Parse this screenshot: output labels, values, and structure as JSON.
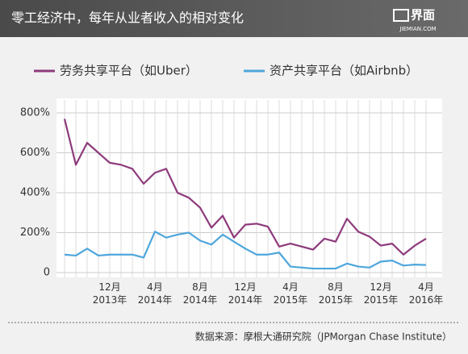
{
  "header": {
    "title": "零工经济中，每年从业者收入的相对变化",
    "logo": "界面",
    "logo_sub": "JIEMIAN.COM"
  },
  "chart_data": {
    "type": "line",
    "categories": [
      null,
      null,
      null,
      null,
      "12月\n2013年",
      null,
      null,
      null,
      "4月\n2014年",
      null,
      null,
      null,
      "8月\n2014年",
      null,
      null,
      null,
      "12月\n2014年",
      null,
      null,
      null,
      "4月\n2015年",
      null,
      null,
      null,
      "8月\n2015年",
      null,
      null,
      null,
      "12月\n2015年",
      null,
      null,
      null,
      "4月\n2016年"
    ],
    "series": [
      {
        "name": "劳务共享平台（如Uber）",
        "color": "#8e3b7c",
        "values": [
          770,
          540,
          650,
          600,
          550,
          540,
          520,
          445,
          500,
          520,
          400,
          375,
          325,
          225,
          285,
          175,
          240,
          245,
          230,
          130,
          145,
          130,
          115,
          170,
          155,
          270,
          205,
          180,
          135,
          145,
          90,
          135,
          170
        ]
      },
      {
        "name": "资产共享平台（如Airbnb）",
        "color": "#4ea6dc",
        "values": [
          90,
          85,
          120,
          85,
          90,
          90,
          90,
          75,
          205,
          175,
          190,
          200,
          160,
          140,
          190,
          155,
          120,
          90,
          90,
          100,
          30,
          25,
          20,
          20,
          20,
          45,
          30,
          25,
          55,
          60,
          35,
          40,
          38
        ]
      }
    ],
    "ylim": [
      0,
      800
    ],
    "yticks": [
      0,
      {
        "value": 200,
        "label": "200%"
      },
      {
        "value": 400,
        "label": "400%"
      },
      {
        "value": 600,
        "label": "600%"
      },
      {
        "value": 800,
        "label": "800%"
      }
    ],
    "grid": true
  },
  "source": "数据来源：摩根大通研究院（JPMorgan Chase Institute）"
}
